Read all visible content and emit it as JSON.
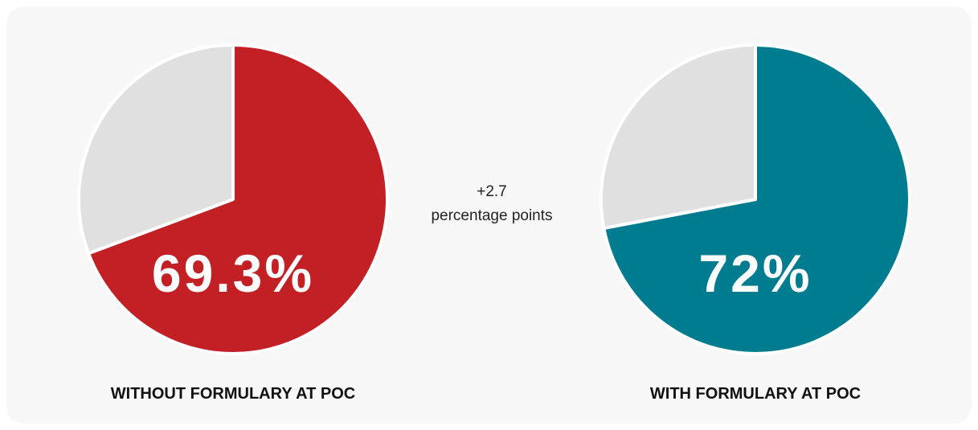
{
  "chart_data": [
    {
      "type": "pie",
      "title": "WITHOUT FORMULARY AT POC",
      "values": [
        69.3,
        30.7
      ],
      "value_labels": [
        "69.3%",
        null
      ],
      "colors": [
        "#c32026",
        "#e0e0e0"
      ]
    },
    {
      "type": "pie",
      "title": "WITH FORMULARY AT POC",
      "values": [
        72,
        28
      ],
      "value_labels": [
        "72%",
        null
      ],
      "colors": [
        "#007c91",
        "#e0e0e0"
      ]
    }
  ],
  "annotation": [
    "+2.7",
    "percentage points"
  ]
}
